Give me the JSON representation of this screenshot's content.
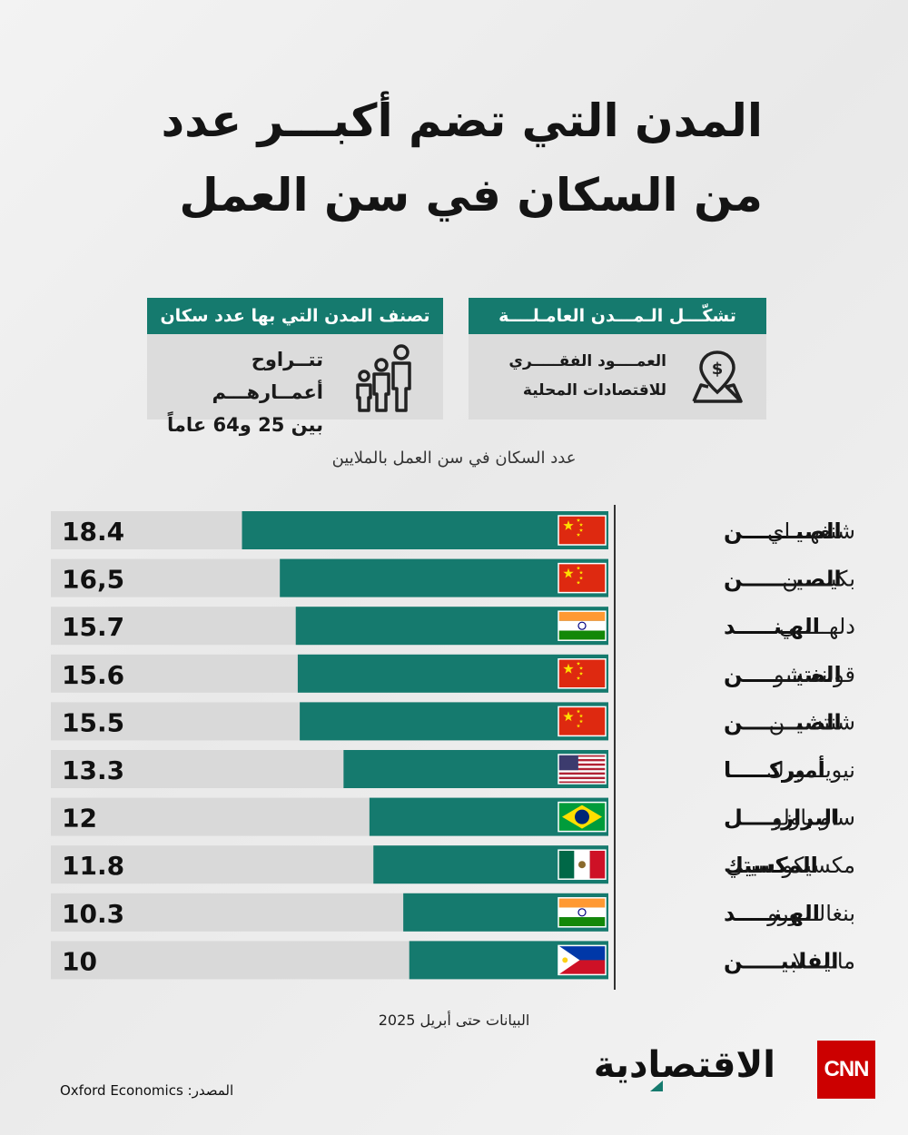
{
  "header": {
    "title_line1": "المدن التي تضم أكبـــر عدد",
    "title_line2": "من السكان في سن العمل"
  },
  "info_boxes": {
    "right": {
      "heading": "تشكّـــل الـمـــدن العامـلــــة",
      "line1": "العمــــود الفقـــــري",
      "line2": "للاقتصادات المحلية",
      "icon": "map-pin-dollar-icon"
    },
    "left": {
      "heading": "تصنف المدن التي بها عدد سكان",
      "line1": "تتــراوح أعمــارهـــم",
      "line2": "بين 25 و64 عاماً",
      "icon": "family-icon"
    }
  },
  "chart_data": {
    "type": "bar",
    "orientation": "horizontal",
    "title": "عدد السكان في سن العمل بالملايين",
    "categories": [
      "شنغهـــاي",
      "بكيـــــن",
      "دلهـــــي",
      "قوانغتشو",
      "شنتشـــن",
      "نيويـــورك",
      "ساو باولو",
      "مكسيكو سيتي",
      "بنغالـــورو",
      "مانيـــلا"
    ],
    "countries": [
      "الصيـــــــن",
      "الصيـــــــن",
      "الهـنـــــد",
      "الصيـــــــن",
      "الصيـــــــن",
      "أميركـــــا",
      "البرازيــــل",
      "المكسيك",
      "الهـنـــــد",
      "الفلبيـــــن"
    ],
    "flags": [
      "china-flag-icon",
      "china-flag-icon",
      "india-flag-icon",
      "china-flag-icon",
      "china-flag-icon",
      "usa-flag-icon",
      "brazil-flag-icon",
      "mexico-flag-icon",
      "india-flag-icon",
      "philippines-flag-icon"
    ],
    "values": [
      18.4,
      16.5,
      15.7,
      15.6,
      15.5,
      13.3,
      12,
      11.8,
      10.3,
      10
    ],
    "value_labels": [
      "18.4",
      "16,5",
      "15.7",
      "15.6",
      "15.5",
      "13.3",
      "12",
      "11.8",
      "10.3",
      "10"
    ],
    "xlim": [
      0,
      28
    ],
    "bar_color": "#157a6e",
    "track_color": "#d9d9d9"
  },
  "footer": {
    "note": "البيانات حتى أبريل 2025",
    "source_label": "المصدر:",
    "source_name": "Oxford Economics",
    "brand_name": "الاقتصادية",
    "cnn_logo": "CNN"
  }
}
